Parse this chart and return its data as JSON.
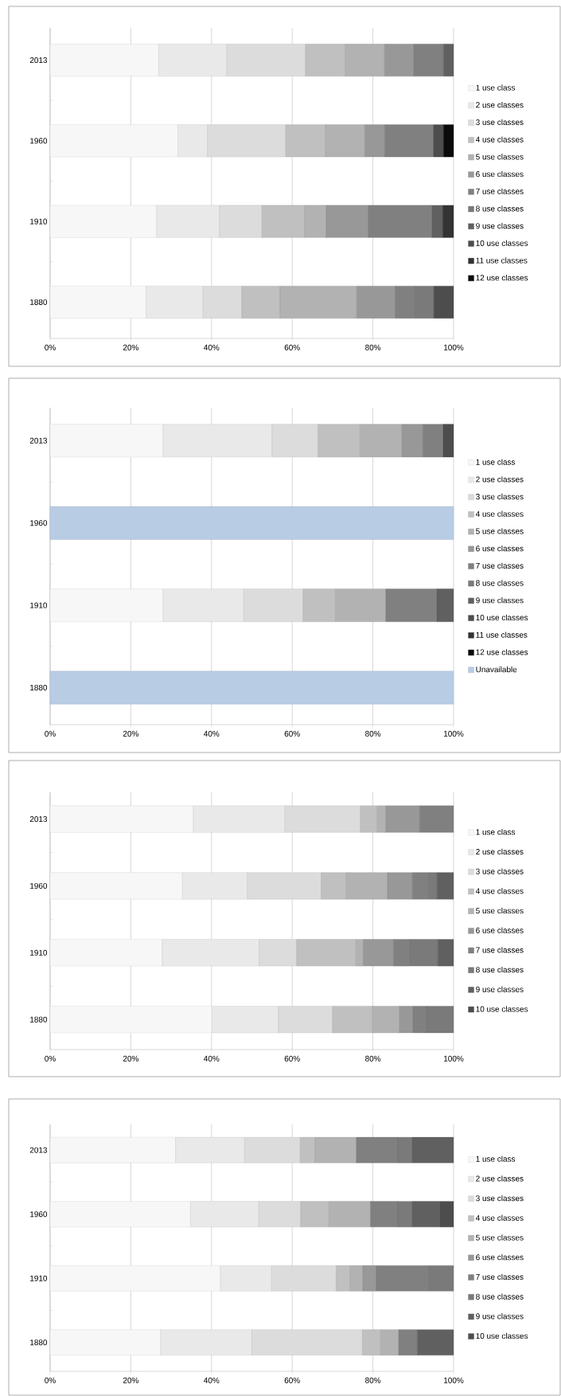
{
  "chart_data": [
    {
      "type": "bar",
      "orientation": "horizontal",
      "stacked": true,
      "grid": "x",
      "legend": "right",
      "categories": [
        "2013",
        "1960",
        "1910",
        "1880"
      ],
      "xlim": [
        0,
        100
      ],
      "xticks": [
        {
          "value": 0,
          "label": "0%"
        },
        {
          "value": 20,
          "label": "20%"
        },
        {
          "value": 40,
          "label": "40%"
        },
        {
          "value": 60,
          "label": "60%"
        },
        {
          "value": 80,
          "label": "80%"
        },
        {
          "value": 100,
          "label": "100%"
        }
      ],
      "series": [
        {
          "name": "1 use class",
          "color": "#f7f7f7",
          "values": [
            26.9,
            31.7,
            26.4,
            23.8
          ]
        },
        {
          "name": "2 use classes",
          "color": "#e9e9e9",
          "values": [
            16.9,
            7.3,
            15.6,
            14.1
          ]
        },
        {
          "name": "3 use classes",
          "color": "#dcdcdc",
          "values": [
            19.5,
            19.4,
            10.5,
            9.6
          ]
        },
        {
          "name": "4 use classes",
          "color": "#c0c0c0",
          "values": [
            9.8,
            9.8,
            10.6,
            9.5
          ]
        },
        {
          "name": "5 use classes",
          "color": "#b2b2b2",
          "values": [
            9.8,
            9.8,
            5.3,
            19.0
          ]
        },
        {
          "name": "6 use classes",
          "color": "#989898",
          "values": [
            7.2,
            4.9,
            10.5,
            9.6
          ]
        },
        {
          "name": "7 use classes",
          "color": "#808080",
          "values": [
            7.4,
            12.1,
            15.7,
            4.7
          ]
        },
        {
          "name": "8 use classes",
          "color": "#7a7a7a",
          "values": [
            null,
            null,
            null,
            4.8
          ]
        },
        {
          "name": "9 use classes",
          "color": "#606060",
          "values": [
            2.5,
            null,
            2.7,
            null
          ]
        },
        {
          "name": "10 use classes",
          "color": "#4d4d4d",
          "values": [
            null,
            2.5,
            null,
            4.9
          ]
        },
        {
          "name": "11 use classes",
          "color": "#333333",
          "values": [
            null,
            null,
            2.7,
            null
          ]
        },
        {
          "name": "12 use classes",
          "color": "#0a0a0a",
          "values": [
            null,
            2.5,
            null,
            null
          ]
        }
      ]
    },
    {
      "type": "bar",
      "orientation": "horizontal",
      "stacked": true,
      "grid": "x",
      "legend": "right",
      "categories": [
        "2013",
        "1960",
        "1910",
        "1880"
      ],
      "xlim": [
        0,
        100
      ],
      "xticks": [
        {
          "value": 0,
          "label": "0%"
        },
        {
          "value": 20,
          "label": "20%"
        },
        {
          "value": 40,
          "label": "40%"
        },
        {
          "value": 60,
          "label": "60%"
        },
        {
          "value": 80,
          "label": "80%"
        },
        {
          "value": 100,
          "label": "100%"
        }
      ],
      "series": [
        {
          "name": "1 use class",
          "color": "#f7f7f7",
          "values": [
            28.0,
            null,
            28.0,
            null
          ]
        },
        {
          "name": "2 use classes",
          "color": "#e9e9e9",
          "values": [
            27.0,
            null,
            20.0,
            null
          ]
        },
        {
          "name": "3 use classes",
          "color": "#dcdcdc",
          "values": [
            11.4,
            null,
            14.7,
            null
          ]
        },
        {
          "name": "4 use classes",
          "color": "#c0c0c0",
          "values": [
            10.4,
            null,
            8.0,
            null
          ]
        },
        {
          "name": "5 use classes",
          "color": "#b2b2b2",
          "values": [
            10.4,
            null,
            12.5,
            null
          ]
        },
        {
          "name": "6 use classes",
          "color": "#989898",
          "values": [
            5.2,
            null,
            null,
            null
          ]
        },
        {
          "name": "7 use classes",
          "color": "#808080",
          "values": [
            5.0,
            null,
            12.6,
            null
          ]
        },
        {
          "name": "8 use classes",
          "color": "#7a7a7a",
          "values": [
            null,
            null,
            null,
            null
          ]
        },
        {
          "name": "9 use classes",
          "color": "#606060",
          "values": [
            null,
            null,
            4.2,
            null
          ]
        },
        {
          "name": "10 use classes",
          "color": "#4d4d4d",
          "values": [
            2.6,
            null,
            null,
            null
          ]
        },
        {
          "name": "11 use classes",
          "color": "#333333",
          "values": [
            null,
            null,
            null,
            null
          ]
        },
        {
          "name": "12 use classes",
          "color": "#0a0a0a",
          "values": [
            null,
            null,
            null,
            null
          ]
        },
        {
          "name": "Unavailable",
          "color": "#b8cce4",
          "values": [
            null,
            100,
            null,
            100
          ]
        }
      ]
    },
    {
      "type": "bar",
      "orientation": "horizontal",
      "stacked": true,
      "grid": "x",
      "legend": "right",
      "categories": [
        "2013",
        "1960",
        "1910",
        "1880"
      ],
      "xlim": [
        0,
        100
      ],
      "xticks": [
        {
          "value": 0,
          "label": "0%"
        },
        {
          "value": 20,
          "label": "20%"
        },
        {
          "value": 40,
          "label": "40%"
        },
        {
          "value": 60,
          "label": "60%"
        },
        {
          "value": 80,
          "label": "80%"
        },
        {
          "value": 100,
          "label": "100%"
        }
      ],
      "series": [
        {
          "name": "1 use class",
          "color": "#f7f7f7",
          "values": [
            35.5,
            32.8,
            27.8,
            40.1
          ]
        },
        {
          "name": "2 use classes",
          "color": "#e9e9e9",
          "values": [
            22.7,
            16.1,
            24.0,
            16.5
          ]
        },
        {
          "name": "3 use classes",
          "color": "#dcdcdc",
          "values": [
            18.7,
            18.3,
            9.3,
            13.4
          ]
        },
        {
          "name": "4 use classes",
          "color": "#c0c0c0",
          "values": [
            4.2,
            6.2,
            14.7,
            9.9
          ]
        },
        {
          "name": "5 use classes",
          "color": "#b2b2b2",
          "values": [
            2.1,
            10.2,
            1.8,
            6.7
          ]
        },
        {
          "name": "6 use classes",
          "color": "#989898",
          "values": [
            8.4,
            6.2,
            7.5,
            3.3
          ]
        },
        {
          "name": "7 use classes",
          "color": "#808080",
          "values": [
            8.4,
            4.1,
            3.8,
            3.4
          ]
        },
        {
          "name": "8 use classes",
          "color": "#7a7a7a",
          "values": [
            null,
            2.0,
            7.2,
            6.7
          ]
        },
        {
          "name": "9 use classes",
          "color": "#606060",
          "values": [
            null,
            4.1,
            3.9,
            null
          ]
        },
        {
          "name": "10 use classes",
          "color": "#4d4d4d",
          "values": [
            null,
            null,
            null,
            null
          ]
        }
      ]
    },
    {
      "type": "bar",
      "orientation": "horizontal",
      "stacked": true,
      "grid": "x",
      "legend": "right",
      "categories": [
        "2013",
        "1960",
        "1910",
        "1880"
      ],
      "xlim": [
        0,
        100
      ],
      "xticks": [
        {
          "value": 0,
          "label": "0%"
        },
        {
          "value": 20,
          "label": "20%"
        },
        {
          "value": 40,
          "label": "40%"
        },
        {
          "value": 60,
          "label": "60%"
        },
        {
          "value": 80,
          "label": "80%"
        },
        {
          "value": 100,
          "label": "100%"
        }
      ],
      "series": [
        {
          "name": "1 use class",
          "color": "#f7f7f7",
          "values": [
            31.1,
            34.8,
            42.2,
            27.4
          ]
        },
        {
          "name": "2 use classes",
          "color": "#e9e9e9",
          "values": [
            17.1,
            16.9,
            12.7,
            22.6
          ]
        },
        {
          "name": "3 use classes",
          "color": "#dcdcdc",
          "values": [
            13.8,
            10.4,
            16.0,
            27.4
          ]
        },
        {
          "name": "4 use classes",
          "color": "#c0c0c0",
          "values": [
            3.6,
            7.0,
            3.4,
            4.5
          ]
        },
        {
          "name": "5 use classes",
          "color": "#b2b2b2",
          "values": [
            10.3,
            10.3,
            3.2,
            4.5
          ]
        },
        {
          "name": "6 use classes",
          "color": "#989898",
          "values": [
            null,
            null,
            3.3,
            null
          ]
        },
        {
          "name": "7 use classes",
          "color": "#808080",
          "values": [
            10.3,
            6.8,
            12.8,
            4.6
          ]
        },
        {
          "name": "8 use classes",
          "color": "#7a7a7a",
          "values": [
            3.5,
            3.5,
            6.4,
            null
          ]
        },
        {
          "name": "9 use classes",
          "color": "#606060",
          "values": [
            10.3,
            6.9,
            null,
            9.0
          ]
        },
        {
          "name": "10 use classes",
          "color": "#4d4d4d",
          "values": [
            null,
            3.4,
            null,
            null
          ]
        }
      ]
    }
  ]
}
